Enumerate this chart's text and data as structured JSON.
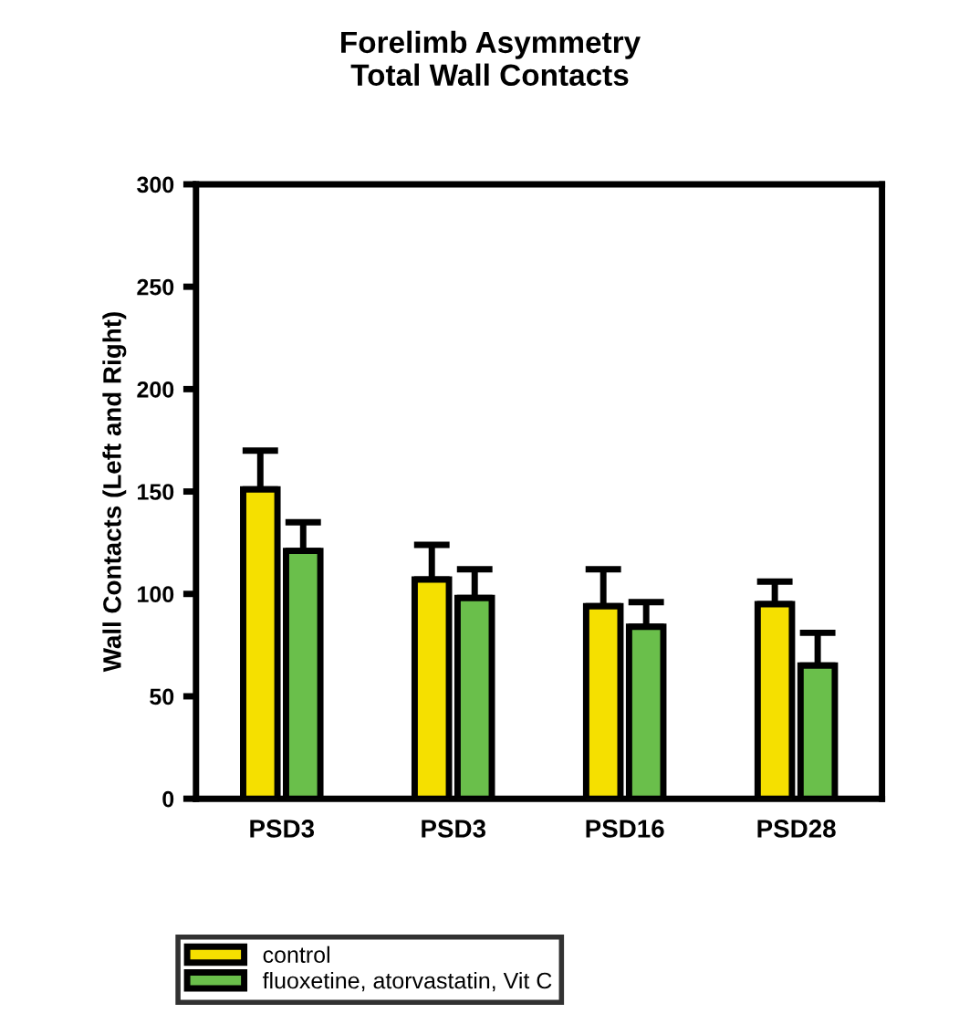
{
  "chart_data": {
    "type": "bar",
    "title": "Forelimb Asymmetry\nTotal Wall Contacts",
    "ylabel": "Wall Contacts (Left and Right)",
    "categories": [
      "PSD3",
      "PSD3",
      "PSD16",
      "PSD28"
    ],
    "series": [
      {
        "name": "control",
        "color": "#f5e000",
        "values": [
          151,
          107,
          94,
          95
        ],
        "errors": [
          [
            151,
            170
          ],
          [
            107,
            124
          ],
          [
            94,
            112
          ],
          [
            95,
            106
          ]
        ]
      },
      {
        "name": "fluoxetine, atorvastatin, Vit C",
        "color": "#6abf4b",
        "values": [
          121,
          98,
          84,
          65
        ],
        "errors": [
          [
            121,
            135
          ],
          [
            98,
            112
          ],
          [
            84,
            96
          ],
          [
            65,
            81
          ]
        ]
      }
    ],
    "ylim": [
      0,
      300
    ],
    "yticks": [
      0,
      50,
      100,
      150,
      200,
      250,
      300
    ],
    "grid": false,
    "legend": "bottom"
  }
}
